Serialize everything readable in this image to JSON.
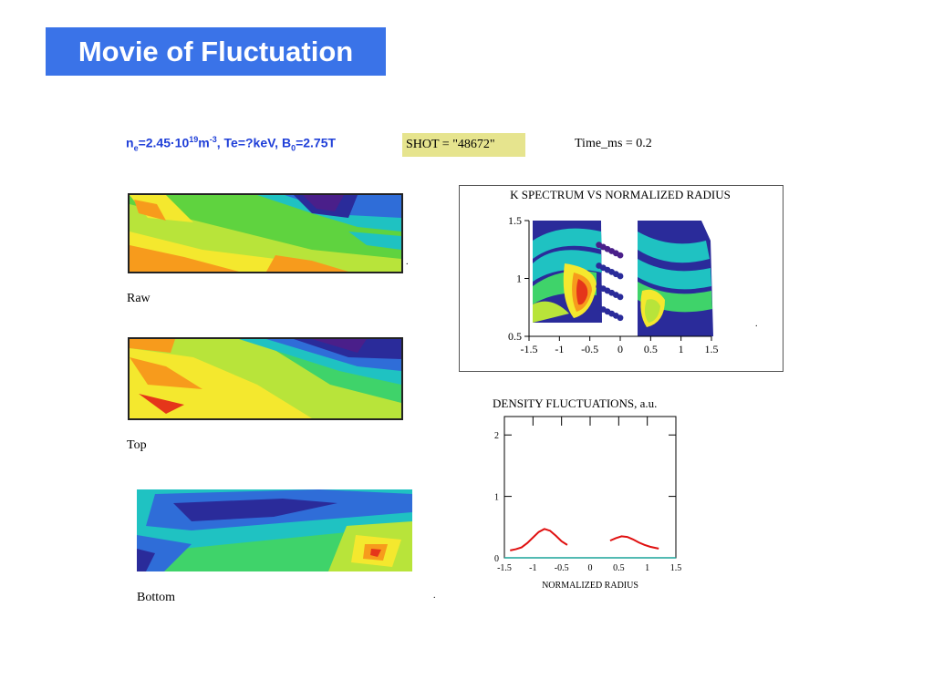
{
  "title": "Movie of Fluctuation",
  "params": {
    "ne_sym": "n",
    "ne_sub": "e",
    "ne_val": "=2.45·10",
    "ne_exp": "19",
    "ne_unit": "m",
    "ne_unit_exp": "-3",
    "te": ", Te=?keV, B",
    "b0_sub": "0",
    "b0_val": "=2.75T"
  },
  "shot": "SHOT = \"48672\"",
  "time": "Time_ms = 0.2",
  "panels": [
    {
      "label": "Raw"
    },
    {
      "label": "Top"
    },
    {
      "label": "Bottom"
    }
  ],
  "dot_mark": ".",
  "colors": {
    "title_bg": "#3a73e8",
    "shot_bg": "#e6e48e",
    "params_text": "#1f3fd8",
    "fluct_line": "#e01010",
    "baseline": "#1aa39a"
  },
  "chart_data": [
    {
      "type": "heatmap",
      "title": "K SPECTRUM VS NORMALIZED RADIUS",
      "xlim": [
        -1.5,
        1.5
      ],
      "ylim": [
        0.5,
        1.5
      ],
      "x_ticks": [
        "-1.5",
        "-1",
        "-0.5",
        "0",
        "0.5",
        "1",
        "1.5"
      ],
      "y_ticks": [
        "0.5",
        "1",
        "1.5"
      ]
    },
    {
      "type": "line",
      "title": "DENSITY FLUCTUATIONS, a.u.",
      "xlabel": "NORMALIZED RADIUS",
      "xlim": [
        -1.5,
        1.5
      ],
      "ylim": [
        0,
        2.3
      ],
      "x_ticks": [
        "-1.5",
        "-1",
        "-0.5",
        "0",
        "0.5",
        "1",
        "1.5"
      ],
      "y_ticks": [
        "0",
        "1",
        "2"
      ],
      "series": [
        {
          "x": [
            -1.4,
            -1.3,
            -1.2,
            -1.1,
            -1.0,
            -0.9,
            -0.8,
            -0.7,
            -0.6,
            -0.5,
            -0.4
          ],
          "y": [
            0.12,
            0.14,
            0.17,
            0.24,
            0.33,
            0.42,
            0.47,
            0.44,
            0.36,
            0.27,
            0.21
          ]
        },
        {
          "x": [
            0.35,
            0.45,
            0.55,
            0.65,
            0.75,
            0.85,
            0.95,
            1.05,
            1.15,
            1.2
          ],
          "y": [
            0.28,
            0.32,
            0.35,
            0.34,
            0.3,
            0.25,
            0.21,
            0.18,
            0.16,
            0.15
          ]
        },
        {
          "x": [
            -1.5,
            1.5
          ],
          "y": [
            0.0,
            0.0
          ]
        }
      ]
    }
  ]
}
